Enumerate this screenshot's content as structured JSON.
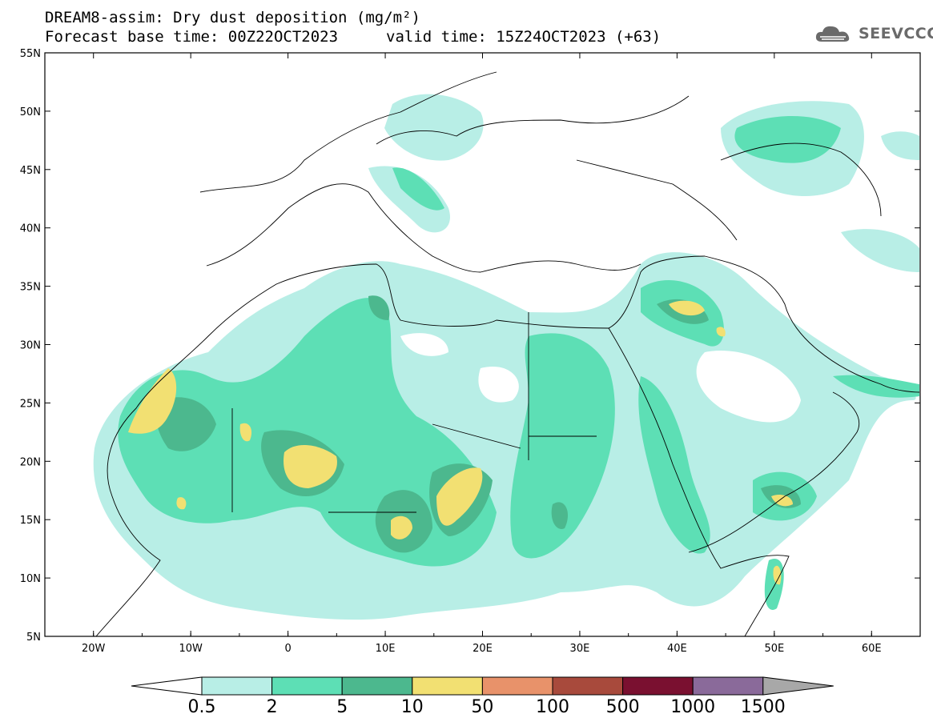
{
  "header": {
    "title": "DREAM8-assim: Dry dust deposition (mg/m²)",
    "base_time": "Forecast base time: 00Z22OCT2023",
    "valid_time": "valid time: 15Z24OCT2023 (+63)"
  },
  "logo": {
    "text": "SEEVCCC",
    "icon": "cloud-icon"
  },
  "map": {
    "lat_labels": [
      "55N",
      "50N",
      "45N",
      "40N",
      "35N",
      "30N",
      "25N",
      "20N",
      "15N",
      "10N",
      "5N"
    ],
    "lon_labels": [
      "20W",
      "10W",
      "0",
      "10E",
      "20E",
      "30E",
      "40E",
      "50E",
      "60E"
    ],
    "lat_range": [
      5,
      55
    ],
    "lon_range": [
      -25,
      65
    ]
  },
  "colorbar": {
    "labels": [
      "0.5",
      "2",
      "5",
      "10",
      "50",
      "100",
      "500",
      "1000",
      "1500"
    ],
    "colors": [
      "#ffffff",
      "#b8eee6",
      "#5ddfb5",
      "#4cb88e",
      "#f2e072",
      "#e8926a",
      "#a84a3c",
      "#7a1030",
      "#8a6a9a",
      "#a8a8a8"
    ]
  }
}
